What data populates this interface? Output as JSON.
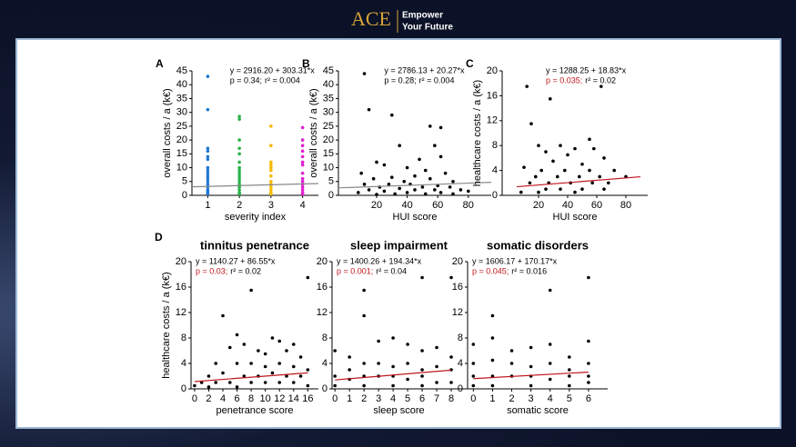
{
  "header": {
    "logo": "ACE",
    "tagline_1": "Empower",
    "tagline_2": "Your Future"
  },
  "chart_data": [
    {
      "type": "scatter",
      "panel_label": "A",
      "xlabel": "severity index",
      "ylabel": "overall costs / a (k€)",
      "equation": "y = 2916.20 + 303.31*x",
      "p_text": "p = 0.34;",
      "r2_text": "r² = 0.004",
      "p_color": "#000000",
      "xlim": [
        0.5,
        4.5
      ],
      "ylim": [
        0,
        45
      ],
      "xticks": [
        1,
        2,
        3,
        4
      ],
      "yticks": [
        0,
        5,
        10,
        15,
        20,
        25,
        30,
        35,
        40,
        45
      ],
      "series": [
        {
          "color": "#1f77d4",
          "x": [
            1,
            1,
            1,
            1,
            1,
            1,
            1,
            1,
            1,
            1,
            1,
            1,
            1,
            1,
            1,
            1,
            1,
            1
          ],
          "values": [
            43,
            31,
            17,
            16,
            14,
            13,
            10,
            9,
            8,
            7,
            6,
            5,
            4,
            3,
            2,
            1.5,
            1,
            0.5
          ]
        },
        {
          "color": "#2ab34a",
          "x": [
            2,
            2,
            2,
            2,
            2,
            2,
            2,
            2,
            2,
            2,
            2,
            2,
            2,
            2,
            2,
            2,
            2
          ],
          "values": [
            28.5,
            27.5,
            20,
            17,
            15,
            12,
            10,
            9,
            8,
            7,
            6,
            5,
            4,
            3,
            2,
            1,
            0.5
          ]
        },
        {
          "color": "#f5b800",
          "x": [
            3,
            3,
            3,
            3,
            3,
            3,
            3,
            3,
            3,
            3,
            3,
            3,
            3
          ],
          "values": [
            25,
            18,
            12,
            11,
            10,
            9,
            7,
            5,
            4,
            3,
            2,
            1,
            0.5
          ]
        },
        {
          "color": "#e020d0",
          "x": [
            4,
            4,
            4,
            4,
            4,
            4,
            4,
            4,
            4,
            4,
            4,
            4,
            4,
            4,
            4
          ],
          "values": [
            24.5,
            20,
            18,
            16,
            14,
            12,
            11,
            8,
            6,
            5,
            4,
            3,
            2,
            1,
            0.5
          ]
        }
      ],
      "fit_line": {
        "x": [
          0.5,
          4.5
        ],
        "y": [
          3.07,
          4.28
        ],
        "color": "#888888"
      }
    },
    {
      "type": "scatter",
      "panel_label": "B",
      "xlabel": "HUI score",
      "ylabel": "overall costs / a (k€)",
      "equation": "y = 2786.13 + 20.27*x",
      "p_text": "p = 0.28;",
      "r2_text": "r² = 0.004",
      "p_color": "#000000",
      "xlim": [
        -5,
        95
      ],
      "ylim": [
        0,
        45
      ],
      "xticks": [
        20,
        40,
        60,
        80
      ],
      "yticks": [
        0,
        5,
        10,
        15,
        20,
        25,
        30,
        35,
        40,
        45
      ],
      "series": [
        {
          "color": "#000000",
          "x": [
            12,
            15,
            30,
            55,
            62,
            35,
            58,
            62,
            48,
            20,
            25,
            40,
            52,
            10,
            65,
            45,
            30,
            18,
            55,
            38,
            70,
            12,
            28,
            42,
            60,
            22,
            50,
            68,
            35,
            15,
            45,
            58,
            75,
            25,
            40,
            62,
            8,
            32,
            52,
            70,
            20,
            80
          ],
          "values": [
            44,
            31,
            29,
            25,
            24.5,
            18,
            18,
            14,
            13,
            12,
            11,
            10,
            9,
            8,
            8,
            7,
            6.5,
            6,
            6,
            5,
            5,
            4,
            4,
            4,
            3.5,
            3,
            3,
            3,
            2.5,
            2,
            2,
            2,
            2,
            1.5,
            1,
            1,
            1,
            0.5,
            0.5,
            0.5,
            0.3,
            1.5
          ]
        }
      ],
      "fit_line": {
        "x": [
          -5,
          95
        ],
        "y": [
          2.69,
          4.71
        ],
        "color": "#888888"
      }
    },
    {
      "type": "scatter",
      "panel_label": "C",
      "xlabel": "HUI score",
      "ylabel": "healthcare costs / a (k€)",
      "equation": "y = 1288.25 + 18.83*x",
      "p_text": "p = 0.035;",
      "r2_text": "r² = 0.02",
      "p_color": "#c0161c",
      "xlim": [
        -5,
        95
      ],
      "ylim": [
        0,
        20
      ],
      "xticks": [
        20,
        40,
        60,
        80
      ],
      "yticks": [
        0,
        4,
        8,
        12,
        16,
        20
      ],
      "series": [
        {
          "color": "#000000",
          "x": [
            12,
            63,
            28,
            15,
            55,
            20,
            35,
            45,
            58,
            25,
            40,
            65,
            30,
            50,
            10,
            22,
            38,
            55,
            72,
            18,
            33,
            48,
            62,
            80,
            14,
            27,
            42,
            57,
            68,
            25,
            35,
            50,
            65,
            8,
            20,
            45
          ],
          "values": [
            17.5,
            17.5,
            15.5,
            11.5,
            9,
            8,
            8,
            7.5,
            7.5,
            7,
            6.5,
            6,
            5.5,
            5,
            4.5,
            4,
            4,
            4,
            4,
            3,
            3,
            3,
            3,
            3,
            2,
            2,
            2,
            2,
            2,
            1,
            1,
            1,
            1,
            0.5,
            0.5,
            0.5
          ]
        }
      ],
      "fit_line": {
        "x": [
          5,
          90
        ],
        "y": [
          1.38,
          2.98
        ],
        "color": "#c0161c"
      }
    },
    {
      "type": "scatter",
      "panel_label": "D",
      "title": "tinnitus penetrance",
      "xlabel": "penetrance score",
      "ylabel": "healthcare costs / a (k€)",
      "equation": "y = 1140.27 + 86.55*x",
      "p_text": "p = 0.03;",
      "r2_text": "r² = 0.02",
      "p_color": "#c0161c",
      "xlim": [
        -0.5,
        17.5
      ],
      "ylim": [
        0,
        20
      ],
      "xticks": [
        0,
        2,
        4,
        6,
        8,
        10,
        12,
        14,
        16
      ],
      "yticks": [
        0,
        4,
        8,
        12,
        16,
        20
      ],
      "series": [
        {
          "color": "#000000",
          "x": [
            8,
            4,
            6,
            11,
            12,
            14,
            16,
            5,
            7,
            9,
            10,
            13,
            15,
            3,
            6,
            8,
            10,
            12,
            14,
            2,
            4,
            7,
            9,
            11,
            13,
            15,
            16,
            1,
            3,
            5,
            8,
            10,
            12,
            14,
            0,
            2,
            6,
            16
          ],
          "values": [
            15.5,
            11.5,
            8.5,
            8,
            7.5,
            7,
            17.5,
            6.5,
            7,
            6,
            5.5,
            6,
            5,
            4,
            4,
            4,
            3.5,
            4,
            3.5,
            2,
            2.5,
            2,
            2,
            2.5,
            2,
            2,
            3,
            1,
            1,
            1,
            1,
            1,
            1,
            1,
            0.5,
            0.3,
            0.3,
            0.5
          ]
        }
      ],
      "fit_line": {
        "x": [
          0,
          16
        ],
        "y": [
          1.14,
          2.52
        ],
        "color": "#c0161c"
      }
    },
    {
      "type": "scatter",
      "title": "sleep impairment",
      "xlabel": "sleep score",
      "equation": "y = 1400.26 + 194.34*x",
      "p_text": "p = 0.001;",
      "r2_text": "r² = 0.04",
      "p_color": "#c0161c",
      "xlim": [
        -0.2,
        9
      ],
      "ylim": [
        0,
        20
      ],
      "xticks": [
        0,
        1,
        2,
        3,
        4,
        5,
        6,
        7,
        8
      ],
      "yticks": [
        0,
        4,
        8,
        12,
        16,
        20
      ],
      "series": [
        {
          "color": "#000000",
          "x": [
            2,
            2,
            6,
            8,
            0,
            1,
            3,
            4,
            5,
            6,
            7,
            8,
            1,
            2,
            3,
            4,
            5,
            6,
            7,
            8,
            0,
            1,
            2,
            3,
            4,
            5,
            6,
            7,
            0,
            2,
            4,
            6,
            8
          ],
          "values": [
            15.5,
            11.5,
            17.5,
            17.5,
            6,
            5,
            7.5,
            8,
            7,
            6,
            6.5,
            5,
            3,
            4,
            4,
            3.5,
            4,
            3,
            3.5,
            3,
            2,
            1.5,
            2,
            2,
            2,
            1.5,
            2,
            1,
            0.5,
            0.5,
            0.5,
            0.5,
            1
          ]
        }
      ],
      "fit_line": {
        "x": [
          0,
          8
        ],
        "y": [
          1.4,
          2.95
        ],
        "color": "#c0161c"
      }
    },
    {
      "type": "scatter",
      "title": "somatic disorders",
      "xlabel": "somatic score",
      "equation": "y = 1606.17 + 170.17*x",
      "p_text": "p = 0.045;",
      "r2_text": "r² = 0.016",
      "p_color": "#c0161c",
      "xlim": [
        -0.3,
        7
      ],
      "ylim": [
        0,
        20
      ],
      "xticks": [
        0,
        1,
        2,
        3,
        4,
        5,
        6
      ],
      "yticks": [
        0,
        4,
        8,
        12,
        16,
        20
      ],
      "series": [
        {
          "color": "#000000",
          "x": [
            4,
            1,
            6,
            0,
            1,
            2,
            3,
            4,
            5,
            6,
            0,
            1,
            2,
            3,
            4,
            5,
            6,
            0,
            1,
            2,
            3,
            4,
            5,
            6,
            0,
            1,
            3,
            5,
            6
          ],
          "values": [
            15.5,
            11.5,
            17.5,
            7,
            8,
            6,
            6.5,
            7,
            5,
            7.5,
            4,
            4.5,
            4,
            3.5,
            4,
            3,
            4,
            2,
            2,
            2,
            2,
            1.5,
            2,
            2,
            0.5,
            0.5,
            0.5,
            0.5,
            1
          ]
        }
      ],
      "fit_line": {
        "x": [
          0,
          6
        ],
        "y": [
          1.61,
          2.63
        ],
        "color": "#c0161c"
      }
    }
  ]
}
